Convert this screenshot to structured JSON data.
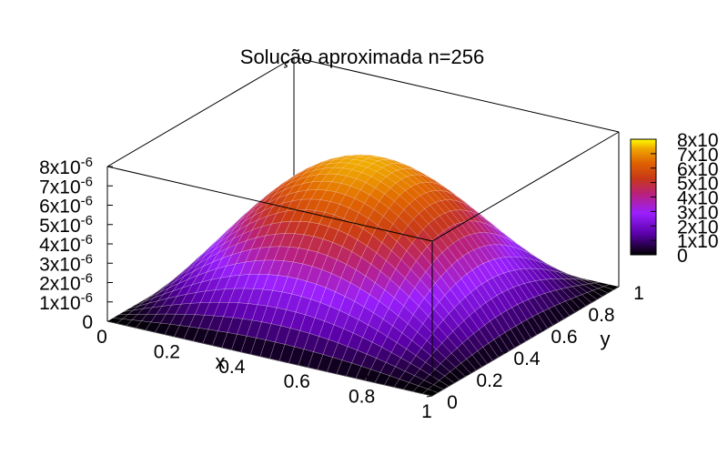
{
  "chart_data": {
    "type": "surface",
    "title": "Solução aproximada n=256",
    "xlabel": "x",
    "ylabel": "y",
    "x_ticks": [
      "0",
      "0.2",
      "0.4",
      "0.6",
      "0.8",
      "1"
    ],
    "y_ticks": [
      "0",
      "0.2",
      "0.4",
      "0.6",
      "0.8",
      "1"
    ],
    "z_ticks": [
      {
        "base": "0",
        "exp": ""
      },
      {
        "base": "1x10",
        "exp": "-6"
      },
      {
        "base": "2x10",
        "exp": "-6"
      },
      {
        "base": "3x10",
        "exp": "-6"
      },
      {
        "base": "4x10",
        "exp": "-6"
      },
      {
        "base": "5x10",
        "exp": "-6"
      },
      {
        "base": "6x10",
        "exp": "-6"
      },
      {
        "base": "7x10",
        "exp": "-6"
      },
      {
        "base": "8x10",
        "exp": "-6"
      }
    ],
    "colorbar_ticks": [
      "0",
      "1x10",
      "2x10",
      "3x10",
      "4x10",
      "5x10",
      "6x10",
      "7x10",
      "8x10"
    ],
    "xlim": [
      0,
      1
    ],
    "ylim": [
      0,
      1
    ],
    "zlim": [
      0,
      8e-06
    ],
    "peak_value": 7.4e-06,
    "surface": "z = peak * sin(pi*x) * sin(pi*y)",
    "grid_points_per_side": 256,
    "palette": [
      "#000000",
      "#7a00c8",
      "#9a20ff",
      "#c0302a",
      "#e05000",
      "#f0a000",
      "#ffff00"
    ]
  }
}
